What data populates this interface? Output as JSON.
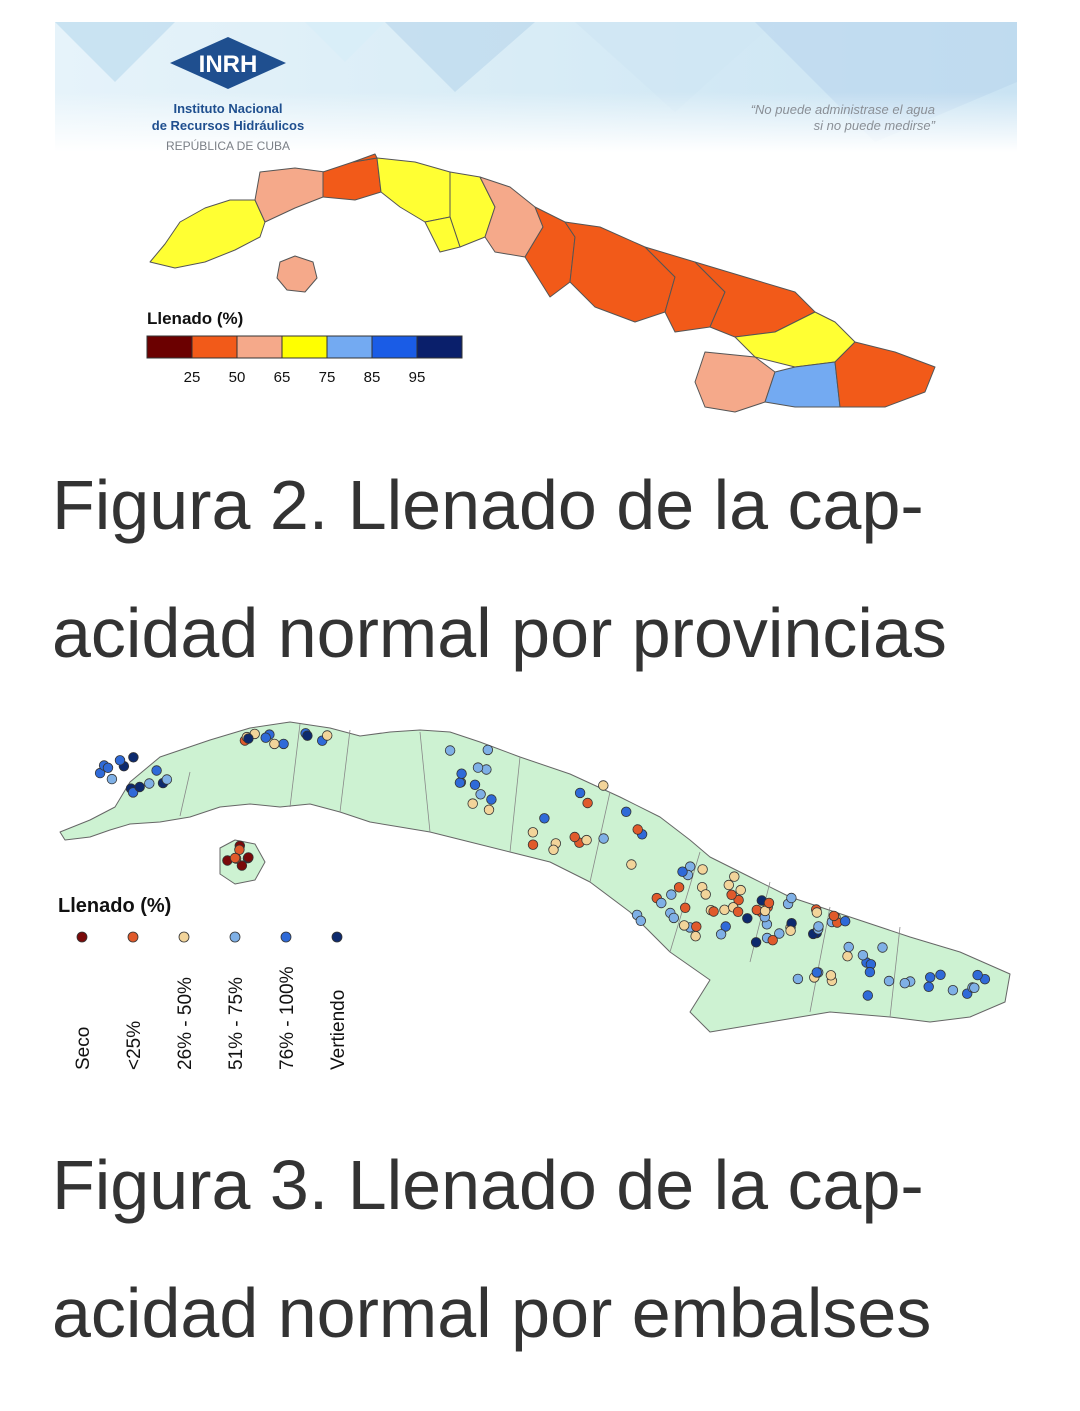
{
  "figure1": {
    "logo": {
      "acronym": "INRH",
      "name_line1": "Instituto Nacional",
      "name_line2": "de Recursos Hidráulicos",
      "country": "REPÚBLICA DE CUBA"
    },
    "quote_line1": "“No puede administrase el agua",
    "quote_line2": "si no puede medirse”",
    "legend": {
      "title": "Llenado (%)",
      "ticks": [
        "25",
        "50",
        "65",
        "75",
        "85",
        "95"
      ],
      "colors": [
        "#6b0000",
        "#f25a19",
        "#f5a98a",
        "#ffff00",
        "#73aaf2",
        "#1a5ce6",
        "#0a1f6b"
      ]
    },
    "caption_line1": "Figura 2. Llenado de la cap-",
    "caption_line2": "acidad normal por provincias"
  },
  "figure2": {
    "legend": {
      "title": "Llenado (%)",
      "categories": [
        "Seco",
        "<25%",
        "26% - 50%",
        "51% - 75%",
        "76% - 100%",
        "Vertiendo"
      ],
      "colors": [
        "#7a0a0a",
        "#e05a2b",
        "#f2d49a",
        "#7fb0e6",
        "#2f6ad8",
        "#0d2a6e"
      ]
    },
    "caption_line1": "Figura 3. Llenado de la cap-",
    "caption_line2": "acidad normal por embalses"
  }
}
